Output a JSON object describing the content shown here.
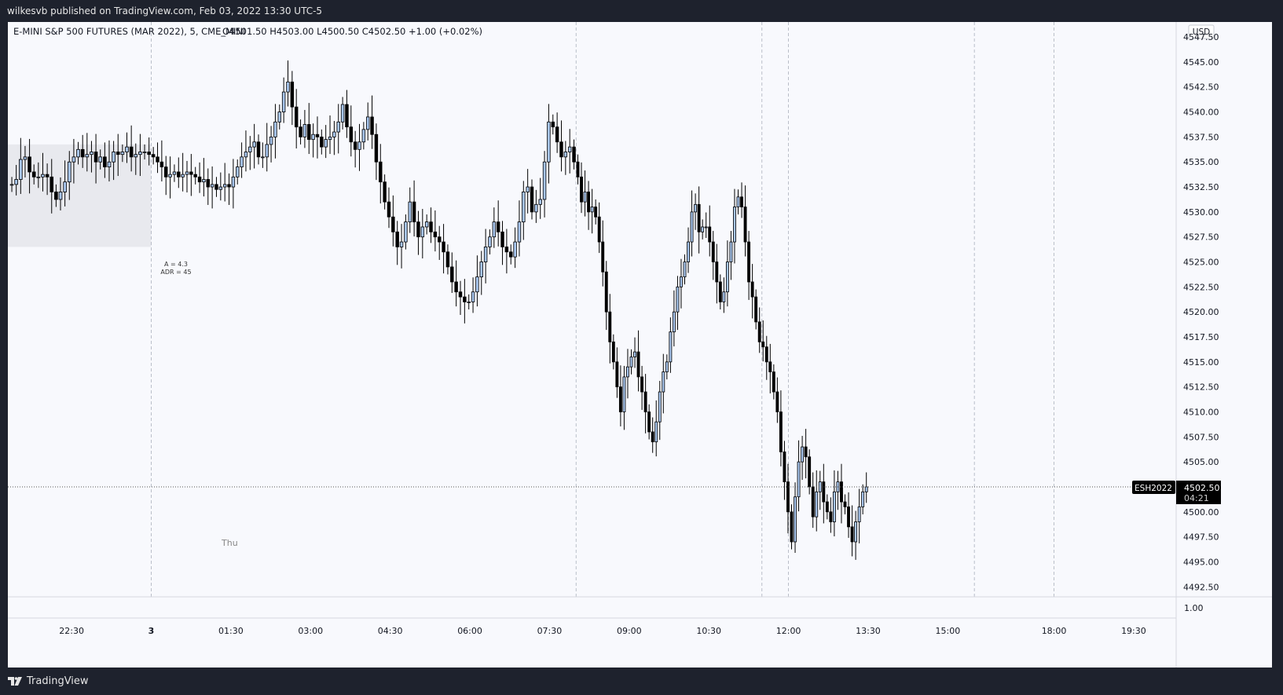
{
  "header": {
    "publish_line": "wilkesvb published on TradingView.com, Feb 03, 2022 13:30 UTC-5"
  },
  "legend": {
    "symbol_line": "E-MINI S&P 500 FUTURES (MAR 2022), 5, CME_MINI",
    "ohlc": "O4501.50  H4503.00  L4500.50  C4502.50  +1.00 (+0.02%)"
  },
  "scale": {
    "currency": "USD",
    "lower_pane_value": "1.00"
  },
  "price_tag": {
    "symbol": "ESH2022",
    "price": "4502.50",
    "countdown": "04:21"
  },
  "annotation": {
    "line1": "A = 4.3",
    "line2": "ADR = 45"
  },
  "session_label": "Thu",
  "footer": {
    "brand": "TradingView"
  },
  "colors": {
    "up_body": "#a9c7ef",
    "down_body": "#000000",
    "wick": "#000000",
    "highlight_box": "#e8e9ee",
    "tag_bg": "#000000"
  },
  "chart_data": {
    "type": "candlestick",
    "interval_minutes": 5,
    "ylim": [
      4491.5,
      4549
    ],
    "y_ticks": [
      "4547.50",
      "4545.00",
      "4542.50",
      "4540.00",
      "4537.50",
      "4535.00",
      "4532.50",
      "4530.00",
      "4527.50",
      "4525.00",
      "4522.50",
      "4520.00",
      "4517.50",
      "4515.00",
      "4512.50",
      "4510.00",
      "4507.50",
      "4505.00",
      "4502.50",
      "4500.00",
      "4497.50",
      "4495.00",
      "4492.50"
    ],
    "x_ticks": [
      {
        "label": "22:30",
        "hour": -1.5
      },
      {
        "label": "3",
        "hour": 0
      },
      {
        "label": "01:30",
        "hour": 1.5
      },
      {
        "label": "03:00",
        "hour": 3
      },
      {
        "label": "04:30",
        "hour": 4.5
      },
      {
        "label": "06:00",
        "hour": 6
      },
      {
        "label": "07:30",
        "hour": 7.5
      },
      {
        "label": "09:00",
        "hour": 9
      },
      {
        "label": "10:30",
        "hour": 10.5
      },
      {
        "label": "12:00",
        "hour": 12
      },
      {
        "label": "13:30",
        "hour": 13.5
      },
      {
        "label": "15:00",
        "hour": 15
      },
      {
        "label": "18:00",
        "hour": 17
      },
      {
        "label": "19:30",
        "hour": 18.5
      }
    ],
    "xlim_hours": [
      -2.7,
      19.3
    ],
    "segments": [
      {
        "start_hour": -2.667,
        "end_hour": 0.0,
        "closes": [
          4532.75,
          4533.25,
          4535.25,
          4535.5,
          4534,
          4533.5,
          4533.5,
          4533.75,
          4533.5,
          4532,
          4531.25,
          4532,
          4533,
          4535,
          4535.5,
          4536.25,
          4535.5,
          4535.75,
          4536,
          4535,
          4535.5,
          4534.5,
          4535,
          4536,
          4535.75,
          4536,
          4536.5,
          4535.5,
          4535.75,
          4536,
          4536,
          4535.75
        ]
      },
      {
        "start_hour": 0.0,
        "end_hour": 8.0,
        "closes": [
          4535.5,
          4535,
          4534.5,
          4533.5,
          4533.75,
          4534,
          4533.5,
          4533.75,
          4534,
          4533.75,
          4533.5,
          4533,
          4533.25,
          4532.5,
          4532.75,
          4532.25,
          4532.5,
          4532.75,
          4532.5,
          4533.5,
          4534.5,
          4535.5,
          4536,
          4536.5,
          4537,
          4535.5,
          4535.5,
          4536.75,
          4537.5,
          4539,
          4540,
          4542,
          4543,
          4540.5,
          4538.5,
          4537.5,
          4538.75,
          4537.25,
          4537.75,
          4537.5,
          4536.5,
          4537.25,
          4537.5,
          4538,
          4539,
          4540.75,
          4538.5,
          4537,
          4536.25,
          4537,
          4538.25,
          4539.5,
          4537.75,
          4535,
          4533,
          4531,
          4529.5,
          4528,
          4526.5,
          4527,
          4529,
          4531,
          4529,
          4527.5,
          4528.5,
          4529,
          4528,
          4527.5,
          4527,
          4526,
          4524.5,
          4523,
          4522,
          4521.5,
          4521,
          4521,
          4522,
          4523.5,
          4525,
          4526.5,
          4527.5,
          4529,
          4528,
          4526.5,
          4526,
          4525.5,
          4527,
          4529,
          4532,
          4532.5,
          4530,
          4530.75,
          4531.25,
          4535,
          4539,
          4538.5,
          4537,
          4535.5,
          4536,
          4536.5,
          4535
        ]
      },
      {
        "start_hour": 8.0,
        "end_hour": 13.5,
        "closes": [
          4533.5,
          4531,
          4532,
          4530,
          4530.5,
          4529.5,
          4527,
          4524,
          4520,
          4517,
          4515,
          4512.5,
          4510,
          4513.5,
          4514.5,
          4515.5,
          4516,
          4513.5,
          4512,
          4510,
          4508,
          4507,
          4509,
          4512,
          4514,
          4515,
          4518,
          4520,
          4522.5,
          4523.5,
          4525,
          4527,
          4530,
          4530.75,
          4528,
          4528.5,
          4528.5,
          4527,
          4525,
          4523,
          4521,
          4522,
          4525,
          4527,
          4530.5,
          4531.5,
          4530.5,
          4527,
          4523,
          4521.5,
          4519,
          4517,
          4516.5,
          4515,
          4514,
          4512,
          4510,
          4506,
          4503,
          4500,
          4497,
          4501.5,
          4505,
          4506.5,
          4505.5,
          4502.5,
          4499.5,
          4502,
          4503,
          4501,
          4500,
          4499,
          4502,
          4503,
          4501,
          4500.5,
          4498.5,
          4497,
          4499,
          4500.5,
          4502,
          4502.5
        ]
      }
    ],
    "current_price": 4502.5,
    "highlight_box": {
      "start_hour": -2.7,
      "end_hour": 0.0,
      "low": 4526.5,
      "high": 4536.75
    },
    "vertical_dashed_hours": [
      0.0,
      8.0,
      11.5,
      12.0,
      15.5,
      17.0
    ]
  }
}
